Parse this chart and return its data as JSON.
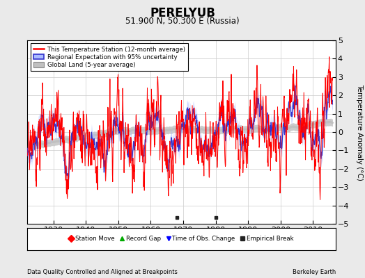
{
  "title": "PERELYUB",
  "subtitle": "51.900 N, 50.300 E (Russia)",
  "xlabel_left": "Data Quality Controlled and Aligned at Breakpoints",
  "xlabel_right": "Berkeley Earth",
  "ylabel": "Temperature Anomaly (°C)",
  "xlim": [
    1922,
    2017
  ],
  "ylim": [
    -5,
    5
  ],
  "yticks": [
    -5,
    -4,
    -3,
    -2,
    -1,
    0,
    1,
    2,
    3,
    4,
    5
  ],
  "xticks": [
    1930,
    1940,
    1950,
    1960,
    1970,
    1980,
    1990,
    2000,
    2010
  ],
  "station_color": "#FF0000",
  "regional_color": "#3333CC",
  "uncertainty_color": "#AABBFF",
  "global_color": "#C0C0C0",
  "background_color": "#EAEAEA",
  "plot_bg_color": "#FFFFFF",
  "grid_color": "#CCCCCC",
  "marker_colors": {
    "station_move": "#FF0000",
    "record_gap": "#00AA00",
    "obs_change": "#0000FF",
    "empirical_break": "#222222"
  },
  "empirical_breaks": [
    1968,
    1980
  ],
  "legend_entries": [
    "This Temperature Station (12-month average)",
    "Regional Expectation with 95% uncertainty",
    "Global Land (5-year average)"
  ],
  "figsize": [
    5.24,
    4.0
  ],
  "dpi": 100
}
